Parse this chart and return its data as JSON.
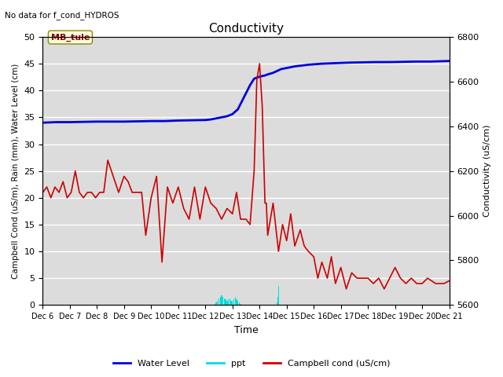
{
  "title": "Conductivity",
  "top_left_text": "No data for f_cond_HYDROS",
  "xlabel": "Time",
  "ylabel_left": "Campbell Cond (uS/m), Rain (mm), Water Level (cm)",
  "ylabel_right": "Conductivity (uS/cm)",
  "ylim_left": [
    0,
    50
  ],
  "ylim_right": [
    5600,
    6800
  ],
  "bg_color": "#dcdcdc",
  "annotation_box": "MB_tule",
  "x_tick_labels": [
    "Dec 6",
    "Dec 7",
    "Dec 8",
    "Dec 9",
    "Dec 10",
    "Dec 11",
    "Dec 12",
    "Dec 13",
    "Dec 14",
    "Dec 15",
    "Dec 16",
    "Dec 17",
    "Dec 18",
    "Dec 19",
    "Dec 20",
    "Dec 21"
  ],
  "water_level_color": "#0000dd",
  "ppt_color": "#00dddd",
  "campbell_color": "#cc0000",
  "water_level_x": [
    0,
    0.5,
    1.0,
    1.5,
    2.0,
    2.5,
    3.0,
    3.5,
    4.0,
    4.5,
    5.0,
    5.5,
    6.0,
    6.2,
    6.4,
    6.6,
    6.8,
    7.0,
    7.2,
    7.35,
    7.5,
    7.65,
    7.8,
    7.95,
    8.1,
    8.2,
    8.3,
    8.5,
    8.8,
    9.3,
    9.8,
    10.3,
    10.8,
    11.3,
    11.8,
    12.3,
    12.8,
    13.3,
    13.8,
    14.3,
    15.0
  ],
  "water_level_y": [
    34.0,
    34.1,
    34.1,
    34.15,
    34.2,
    34.2,
    34.2,
    34.25,
    34.3,
    34.3,
    34.4,
    34.45,
    34.5,
    34.6,
    34.8,
    35.0,
    35.2,
    35.6,
    36.5,
    38.0,
    39.5,
    41.0,
    42.2,
    42.5,
    42.7,
    42.8,
    43.0,
    43.3,
    44.0,
    44.5,
    44.8,
    45.0,
    45.1,
    45.2,
    45.25,
    45.3,
    45.3,
    45.35,
    45.4,
    45.4,
    45.5
  ],
  "campbell_x": [
    0,
    0.15,
    0.3,
    0.45,
    0.6,
    0.75,
    0.9,
    1.05,
    1.2,
    1.35,
    1.5,
    1.65,
    1.8,
    1.95,
    2.1,
    2.25,
    2.4,
    2.6,
    2.8,
    3.0,
    3.15,
    3.3,
    3.5,
    3.65,
    3.8,
    4.0,
    4.2,
    4.4,
    4.6,
    4.8,
    5.0,
    5.2,
    5.4,
    5.6,
    5.8,
    6.0,
    6.2,
    6.4,
    6.6,
    6.8,
    7.0,
    7.15,
    7.3,
    7.5,
    7.65,
    7.8,
    7.9,
    8.0,
    8.1,
    8.2,
    8.25,
    8.3,
    8.5,
    8.7,
    8.85,
    9.0,
    9.15,
    9.3,
    9.5,
    9.65,
    9.8,
    10.0,
    10.15,
    10.3,
    10.5,
    10.65,
    10.8,
    11.0,
    11.2,
    11.4,
    11.6,
    11.8,
    12.0,
    12.2,
    12.4,
    12.6,
    12.8,
    13.0,
    13.2,
    13.4,
    13.6,
    13.8,
    14.0,
    14.2,
    14.5,
    14.8,
    15.0
  ],
  "campbell_y": [
    21,
    22,
    20,
    22,
    21,
    23,
    20,
    21,
    25,
    21,
    20,
    21,
    21,
    20,
    21,
    21,
    27,
    24,
    21,
    24,
    23,
    21,
    21,
    21,
    13,
    20,
    24,
    8,
    22,
    19,
    22,
    18,
    16,
    22,
    16,
    22,
    19,
    18,
    16,
    18,
    17,
    21,
    16,
    16,
    15,
    25,
    42,
    45,
    37,
    19,
    19,
    13,
    19,
    10,
    15,
    12,
    17,
    11,
    14,
    11,
    10,
    9,
    5,
    8,
    5,
    9,
    4,
    7,
    3,
    6,
    5,
    5,
    5,
    4,
    5,
    3,
    5,
    7,
    5,
    4,
    5,
    4,
    4,
    5,
    4,
    4,
    4.5
  ],
  "ppt_x_main": [
    6.3,
    6.35,
    6.4,
    6.45,
    6.5,
    6.55,
    6.6,
    6.65,
    6.7,
    6.75,
    6.8,
    6.85,
    6.9,
    6.95,
    7.0,
    7.05,
    7.1,
    7.15,
    7.2,
    7.25,
    7.3
  ],
  "ppt_y_main": [
    0.1,
    0.2,
    0.5,
    0.8,
    1.2,
    1.5,
    1.8,
    1.5,
    1.2,
    1.0,
    0.8,
    1.0,
    1.2,
    0.8,
    0.8,
    1.0,
    1.5,
    1.0,
    0.8,
    0.5,
    0.2
  ],
  "ppt_x_spike": [
    8.65,
    8.68,
    8.7,
    8.72,
    8.75
  ],
  "ppt_y_spike": [
    0.5,
    1.5,
    3.5,
    1.5,
    0.3
  ]
}
